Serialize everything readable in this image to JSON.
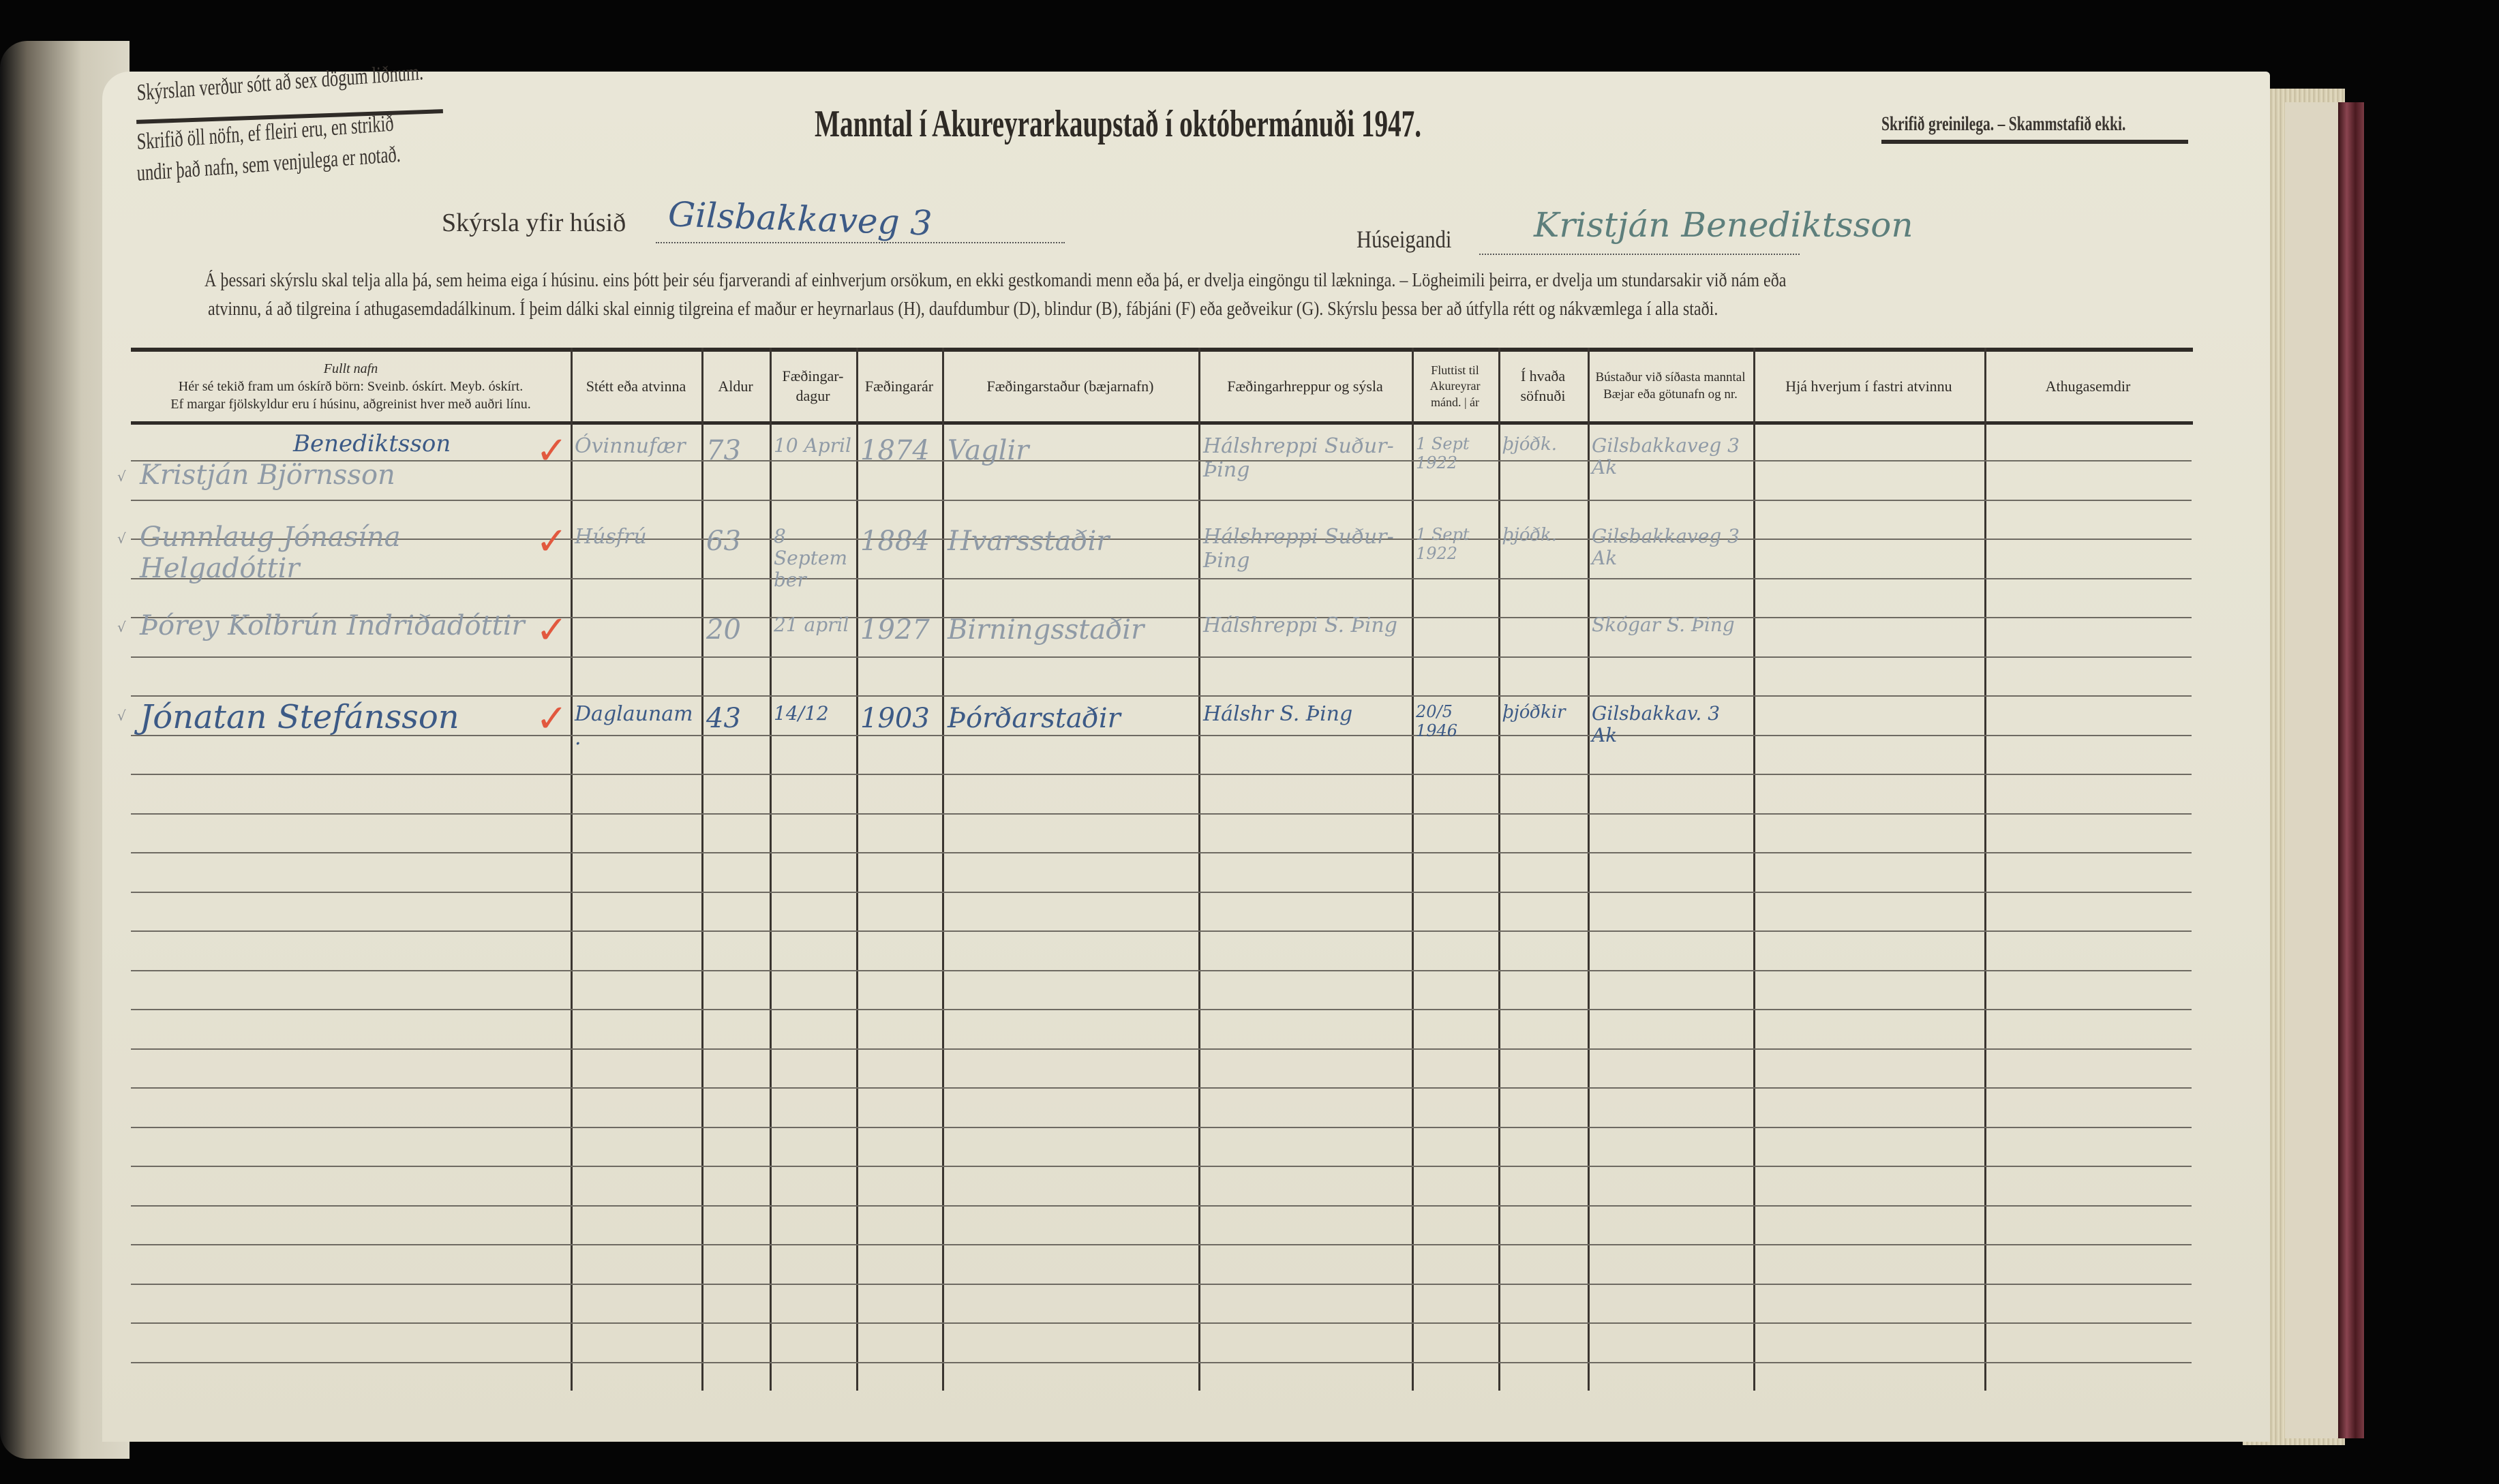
{
  "header": {
    "note_top": "Skýrslan verður sótt að sex dögum liðnum.",
    "note_names": "Skrifið öll nöfn, ef fleiri eru, en strikið",
    "note_names2": "undir það nafn, sem venjulega er notað.",
    "title": "Manntal í Akureyrarkaupstað í októbermánuði 1947.",
    "note_right": "Skrifið greinilega. – Skammstafið ekki.",
    "house_label": "Skýrsla yfir húsið",
    "house_value": "Gilsbakkaveg 3",
    "owner_label": "Húseigandi",
    "owner_value": "Kristján Benediktsson"
  },
  "instructions": {
    "line1": "Á þessari skýrslu skal telja alla þá, sem heima eiga í húsinu.  eins þótt þeir séu fjarverandi af einhverjum orsökum, en ekki gestkomandi menn eða þá, er dvelja eingöngu til lækninga.  – Lögheimili þeirra, er dvelja um stundarsakir við nám eða",
    "line2": "atvinnu, á að tilgreina í athugasemdadálkinum. Í þeim dálki  skal einnig tilgreina ef maður er heyrnarlaus (H), daufdumbur (D), blindur (B), fábjáni (F) eða geðveikur (G). Skýrslu  þessa ber að útfylla rétt og nákvæmlega í alla staði."
  },
  "columns": {
    "name_title": "Fullt nafn",
    "name_sub1": "Hér sé tekið fram um óskírð börn: Sveinb. óskírt. Meyb. óskírt.",
    "name_sub2": "Ef margar fjölskyldur eru í húsinu, aðgreinist hver með auðri línu.",
    "occupation": "Stétt eða atvinna",
    "age": "Aldur",
    "birthday": "Fæðingar-dagur",
    "birthyear": "Fæðingarár",
    "birthplace": "Fæðingarstaður (bæjarnafn)",
    "birthparish": "Fæðingarhreppur og sýsla",
    "moved": "Fluttist til Akureyrar",
    "moved_sub": "mánd. | ár",
    "congregation": "Í hvaða söfnuði",
    "lastcensus": "Bústaður við síðasta manntal",
    "lastcensus_sub": "Bæjar eða götunafn og nr.",
    "employer": "Hjá hverjum í fastri atvinnu",
    "remarks": "Athugasemdir"
  },
  "entries": [
    {
      "name": "Kristján Björnsson",
      "correction": "Benediktsson",
      "occupation": "Óvinnufær",
      "age": "73",
      "birthday": "10 April",
      "birthyear": "1874",
      "birthplace": "Vaglir",
      "birthparish": "Hálshreppi Suður-Þing",
      "moved": "1 Sept 1922",
      "congregation": "þjóðk.",
      "lastcensus": "Gilsbakkaveg 3 Ak"
    },
    {
      "name": "Gunnlaug Jónasína Helgadóttir",
      "occupation": "Húsfrú",
      "age": "63",
      "birthday": "8 September",
      "birthyear": "1884",
      "birthplace": "Hvarsstaðir",
      "birthparish": "Hálshreppi Suður-Þing",
      "moved": "1 Sept 1922",
      "congregation": "þjóðk.",
      "lastcensus": "Gilsbakkaveg 3 Ak"
    },
    {
      "name": "Þórey Kolbrún Indriðadóttir",
      "occupation": "",
      "age": "20",
      "birthday": "21 april",
      "birthyear": "1927",
      "birthplace": "Birningsstaðir",
      "birthparish": "Hálshreppi S. Þing",
      "moved": "",
      "congregation": "",
      "lastcensus": "Skógar S. Þing"
    },
    {
      "name": "Jónatan Stefánsson",
      "occupation": "Daglaunam.",
      "age": "43",
      "birthday": "14/12",
      "birthyear": "1903",
      "birthplace": "Þórðarstaðir",
      "birthparish": "Hálshr S. Þing",
      "moved": "20/5 1946",
      "congregation": "þjóðkir",
      "lastcensus": "Gilsbakkav. 3 Ak"
    }
  ],
  "colors": {
    "page": "#e7e3d3",
    "print": "#2f2b27",
    "ink_blue": "#3c5a86",
    "pencil": "#8f9aa6",
    "check_red": "#e2583e"
  }
}
